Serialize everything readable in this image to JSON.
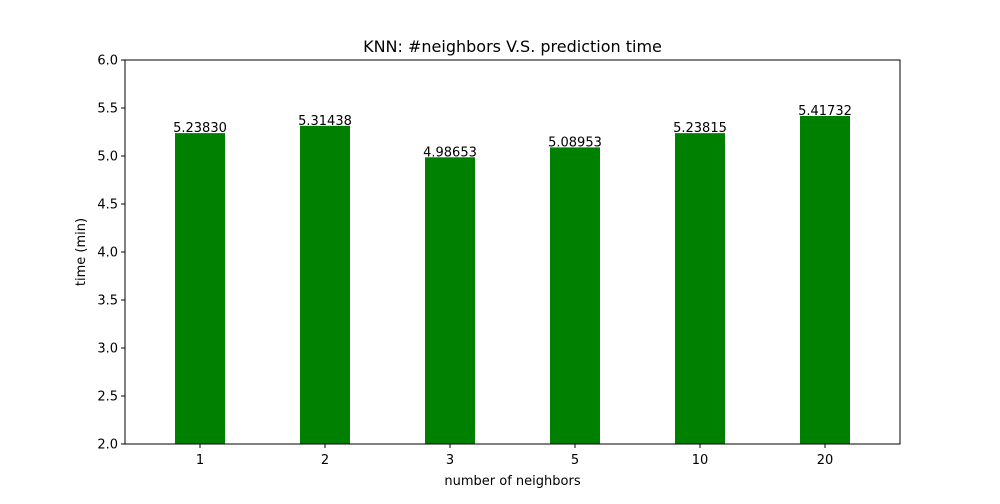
{
  "chart_data": {
    "type": "bar",
    "title": "KNN: #neighbors V.S. prediction time",
    "xlabel": "number of neighbors",
    "ylabel": "time (min)",
    "categories": [
      "1",
      "2",
      "3",
      "5",
      "10",
      "20"
    ],
    "values": [
      5.2383,
      5.31438,
      4.98653,
      5.08953,
      5.23815,
      5.41732
    ],
    "data_labels": [
      "5.23830",
      "5.31438",
      "4.98653",
      "5.08953",
      "5.23815",
      "5.41732"
    ],
    "ylim": [
      2.0,
      6.0
    ],
    "yticks": [
      "2.0",
      "2.5",
      "3.0",
      "3.5",
      "4.0",
      "4.5",
      "5.0",
      "5.5",
      "6.0"
    ],
    "bar_color": "#008000",
    "grid": false,
    "legend": "none"
  }
}
